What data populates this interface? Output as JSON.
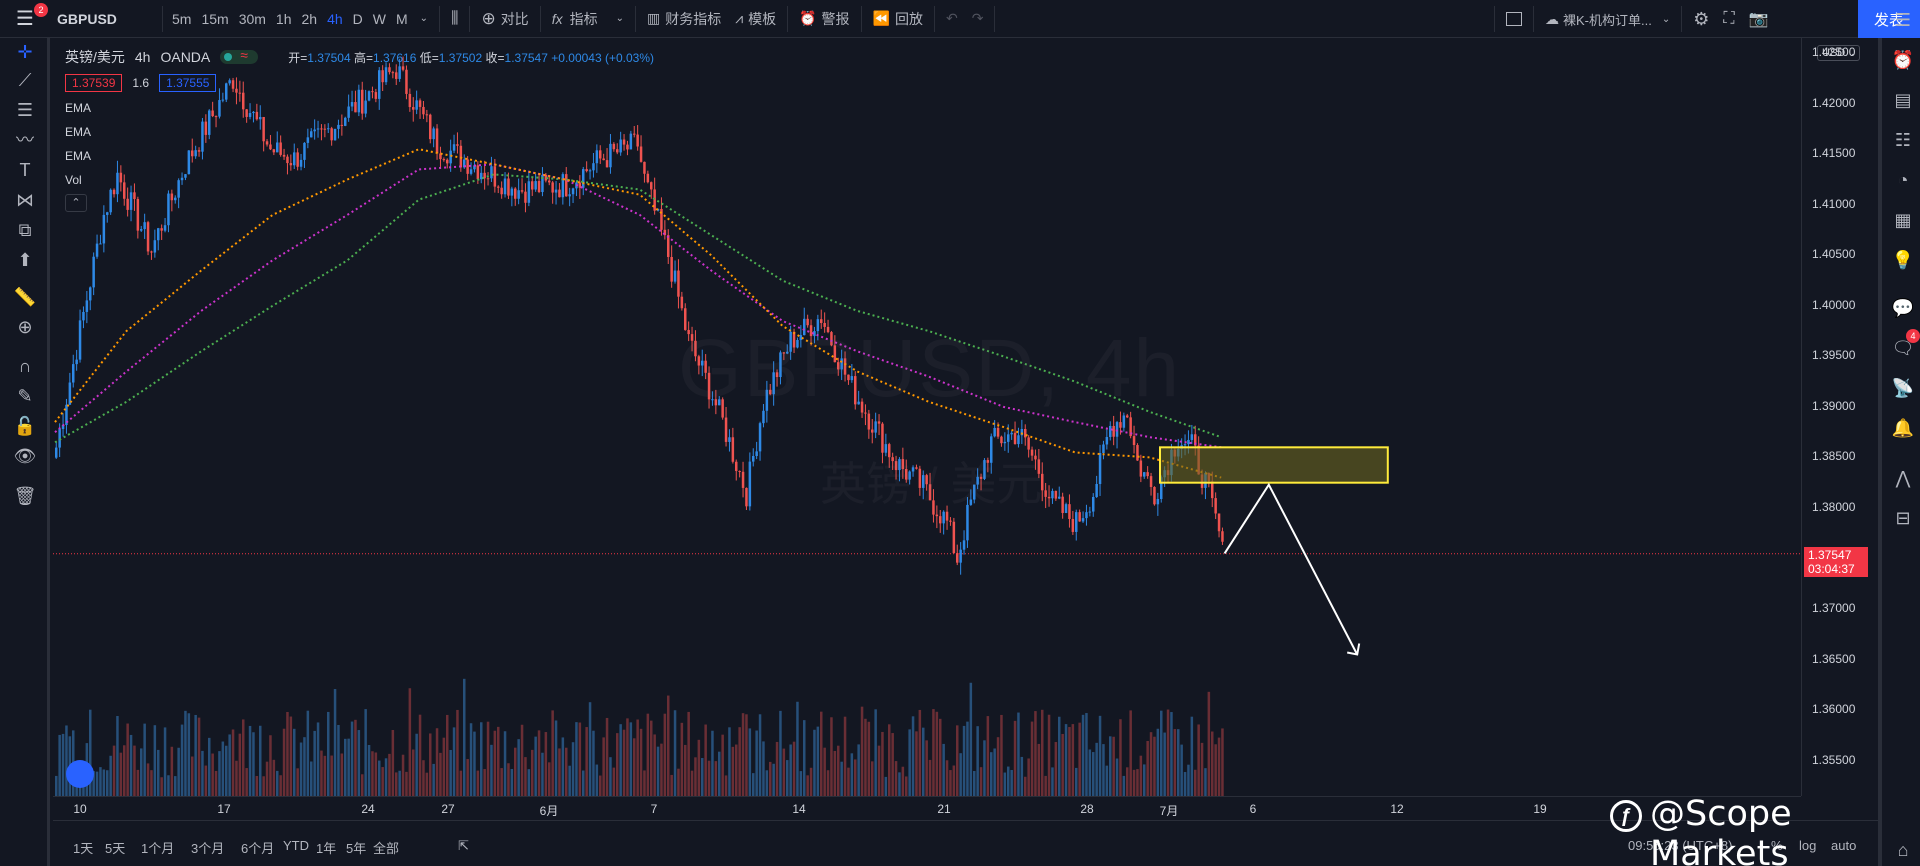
{
  "toolbar": {
    "menu_badge": "2",
    "symbol": "GBPUSD",
    "intervals": [
      "5m",
      "15m",
      "30m",
      "1h",
      "2h",
      "4h",
      "D",
      "W",
      "M"
    ],
    "active_interval": "4h",
    "compare_label": "对比",
    "indicators_label": "指标",
    "financials_label": "财务指标",
    "templates_label": "模板",
    "alert_label": "警报",
    "replay_label": "回放",
    "layout_name": "裸K-机构订单...",
    "publish_label": "发表"
  },
  "legend": {
    "pair": "英镑/美元",
    "interval": "4h",
    "broker": "OANDA",
    "open_label": "开=",
    "open": "1.37504",
    "high_label": "高=",
    "high": "1.37616",
    "low_label": "低=",
    "low": "1.37502",
    "close_label": "收=",
    "close": "1.37547",
    "change": "+0.00043 (+0.03%)",
    "bid": "1.37539",
    "spread": "1.6",
    "ask": "1.37555",
    "indicators": [
      "EMA",
      "EMA",
      "EMA",
      "Vol"
    ],
    "collapse_icon": "chevron-up"
  },
  "watermark": {
    "line1": "GBPUSD, 4h",
    "line2": "英镑 / 美元"
  },
  "price_axis": {
    "currency": "USD",
    "ticks": [
      "1.42500",
      "1.42000",
      "1.41500",
      "1.41000",
      "1.40500",
      "1.40000",
      "1.39500",
      "1.39000",
      "1.38500",
      "1.38000",
      "1.37500",
      "1.37000",
      "1.36500",
      "1.36000",
      "1.35500"
    ],
    "last_price": "1.37547",
    "countdown": "03:04:37"
  },
  "time_axis": {
    "labels": [
      "10",
      "17",
      "24",
      "27",
      "6月",
      "7",
      "14",
      "21",
      "28",
      "7月",
      "6",
      "12",
      "19"
    ]
  },
  "bottom_bar": {
    "ranges": [
      "1天",
      "5天",
      "1个月",
      "3个月",
      "6个月",
      "YTD",
      "1年",
      "5年",
      "全部"
    ],
    "clock": "09:55:23 (UTC+8)",
    "percent_label": "%",
    "log_label": "log",
    "auto_label": "auto"
  },
  "overlay_brand": "@Scope Markets",
  "right_toolbar": {
    "chat_badge": "4"
  },
  "colors": {
    "background": "#131722",
    "up": "#2e89e6",
    "down": "#ef5350",
    "ema_fast": "#ff9800",
    "ema_mid": "#cc33cc",
    "ema_slow": "#4caf50",
    "zone_fill": "#6b6420",
    "zone_border": "#ffeb3b",
    "publish": "#2962ff"
  },
  "chart_data": {
    "type": "candlestick",
    "symbol": "GBPUSD",
    "timeframe": "4h",
    "ylim": [
      1.3515,
      1.4265
    ],
    "price_path": [
      [
        0,
        1.386
      ],
      [
        14,
        1.409
      ],
      [
        18,
        1.413
      ],
      [
        28,
        1.4055
      ],
      [
        38,
        1.414
      ],
      [
        52,
        1.4225
      ],
      [
        63,
        1.4155
      ],
      [
        70,
        1.4145
      ],
      [
        82,
        1.418
      ],
      [
        92,
        1.421
      ],
      [
        100,
        1.4235
      ],
      [
        112,
        1.416
      ],
      [
        120,
        1.4145
      ],
      [
        136,
        1.4115
      ],
      [
        150,
        1.412
      ],
      [
        160,
        1.4145
      ],
      [
        171,
        1.416
      ],
      [
        173,
        1.4125
      ],
      [
        180,
        1.405
      ],
      [
        186,
        1.3965
      ],
      [
        192,
        1.392
      ],
      [
        196,
        1.3885
      ],
      [
        203,
        1.3815
      ],
      [
        208,
        1.3905
      ],
      [
        216,
        1.3965
      ],
      [
        225,
        1.399
      ],
      [
        233,
        1.3925
      ],
      [
        240,
        1.3885
      ],
      [
        247,
        1.3845
      ],
      [
        255,
        1.382
      ],
      [
        262,
        1.3785
      ],
      [
        265,
        1.375
      ],
      [
        269,
        1.3805
      ],
      [
        275,
        1.3865
      ],
      [
        283,
        1.3875
      ],
      [
        288,
        1.3845
      ],
      [
        293,
        1.3805
      ],
      [
        300,
        1.3785
      ],
      [
        305,
        1.3815
      ],
      [
        310,
        1.388
      ],
      [
        315,
        1.3895
      ],
      [
        318,
        1.3845
      ],
      [
        323,
        1.3815
      ],
      [
        330,
        1.387
      ],
      [
        334,
        1.386
      ],
      [
        338,
        1.3825
      ],
      [
        342,
        1.3775
      ],
      [
        343,
        1.3755
      ]
    ],
    "ema_fast": [
      1.3885,
      1.3975,
      1.4035,
      1.409,
      1.4125,
      1.4155,
      1.414,
      1.4125,
      1.411,
      1.405,
      1.398,
      1.3935,
      1.3905,
      1.388,
      1.3855,
      1.385,
      1.383
    ],
    "ema_mid": [
      1.3875,
      1.3935,
      1.3995,
      1.4045,
      1.409,
      1.4135,
      1.414,
      1.4125,
      1.409,
      1.4035,
      1.3985,
      1.3955,
      1.393,
      1.39,
      1.3885,
      1.387,
      1.386
    ],
    "ema_slow": [
      1.3865,
      1.3905,
      1.3955,
      1.4,
      1.4045,
      1.4105,
      1.413,
      1.4125,
      1.4115,
      1.407,
      1.4025,
      1.3995,
      1.3975,
      1.395,
      1.3925,
      1.3895,
      1.387
    ],
    "zone": {
      "from_price": 1.3825,
      "to_price": 1.386
    },
    "projection_arrow": {
      "start_price": 1.3755,
      "peak_price": 1.3823,
      "target_price": 1.3655
    },
    "last_price": 1.37547
  }
}
